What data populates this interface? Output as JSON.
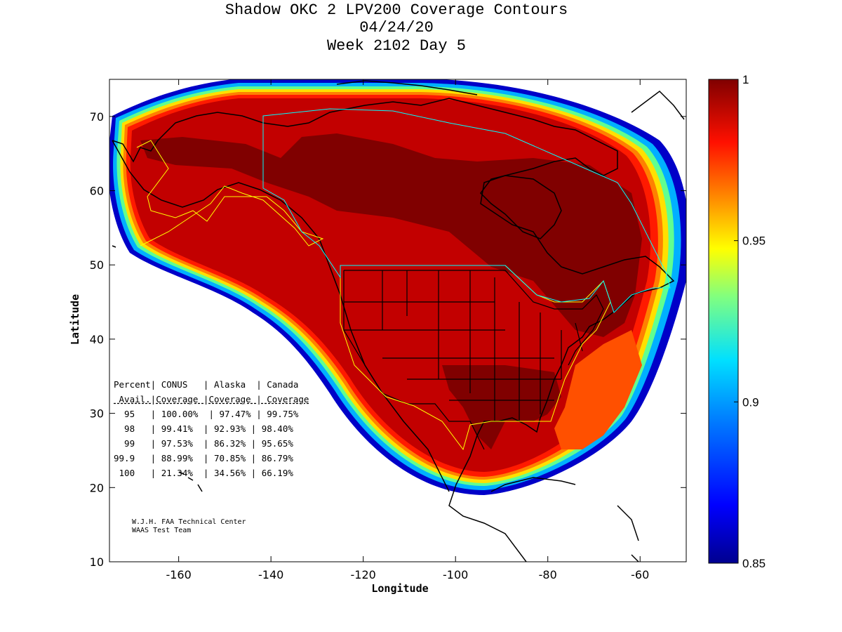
{
  "title": {
    "line1": "Shadow OKC 2 LPV200 Coverage Contours",
    "line2": "04/24/20",
    "line3": "Week 2102 Day 5"
  },
  "axes": {
    "xlabel": "Longitude",
    "ylabel": "Latitude",
    "x_ticks": [
      "-160",
      "-140",
      "-120",
      "-100",
      "-80",
      "-60"
    ],
    "y_ticks": [
      "10",
      "20",
      "30",
      "40",
      "50",
      "60",
      "70"
    ],
    "xlim": [
      -175,
      -50
    ],
    "ylim": [
      10,
      75
    ]
  },
  "colorbar": {
    "ticks": [
      "0.85",
      "0.9",
      "0.95",
      "1"
    ],
    "range": [
      0.85,
      1.0
    ]
  },
  "stats_table": {
    "header1": [
      "Percent|",
      "CONUS",
      "|",
      "Alaska",
      "|",
      "Canada"
    ],
    "header1_text": "Percent| CONUS   | Alaska  | Canada",
    "header2_text": " Avail.|Coverage |Coverage | Coverage",
    "rows": [
      {
        "percent": "95",
        "conus": "100.00%",
        "alaska": "97.47%",
        "canada": "99.75%"
      },
      {
        "percent": "98",
        "conus": "99.41%",
        "alaska": "92.93%",
        "canada": "98.40%"
      },
      {
        "percent": "99",
        "conus": "97.53%",
        "alaska": "86.32%",
        "canada": "95.65%"
      },
      {
        "percent": "99.9",
        "conus": "88.99%",
        "alaska": "70.85%",
        "canada": "86.79%"
      },
      {
        "percent": "100",
        "conus": "21.34%",
        "alaska": "34.56%",
        "canada": "66.19%"
      }
    ],
    "row_texts": [
      "  95   | 100.00%  | 97.47% | 99.75%",
      "  98   | 99.41%  | 92.93% | 98.40%",
      "  99   | 97.53%  | 86.32% | 95.65%",
      "99.9   | 88.99%  | 70.85% | 86.79%",
      " 100   | 21.34%  | 34.56% | 66.19%"
    ]
  },
  "credit": {
    "line1": "W.J.H. FAA Technical Center",
    "line2": "WAAS Test Team"
  },
  "colors": {
    "dark_red": "#7f0000",
    "red": "#c00000",
    "bright_red": "#ff1a00",
    "orange": "#ff8000",
    "yellow": "#ffe000",
    "cyan": "#00d0ff",
    "blue": "#0050ff",
    "navy": "#00008f",
    "us_border": "#ffff00",
    "canada_border": "#00ffff"
  }
}
